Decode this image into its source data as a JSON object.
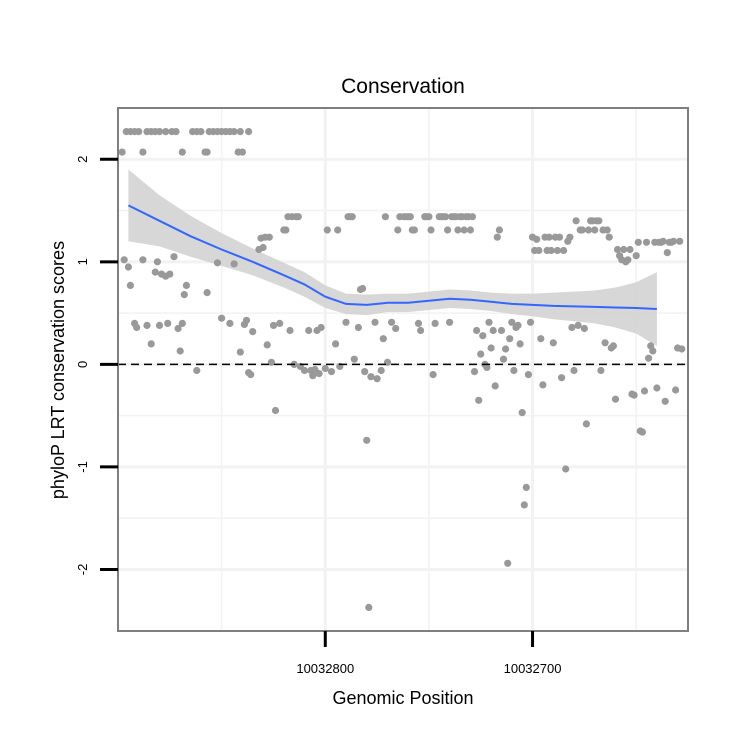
{
  "chart_data": {
    "type": "scatter",
    "title": "Conservation",
    "xlabel": "Genomic Position",
    "ylabel": "phyloP LRT conservation scores",
    "x_reversed": true,
    "xlim": [
      10032900,
      10032625
    ],
    "ylim": [
      -2.6,
      2.5
    ],
    "x_ticks": [
      10032800,
      10032700
    ],
    "x_tick_labels": [
      "10032800",
      "10032700"
    ],
    "y_ticks": [
      -2,
      -1,
      0,
      1,
      2
    ],
    "y_tick_labels": [
      "-2",
      "-1",
      "0",
      "1",
      "2"
    ],
    "grid": true,
    "reference_line": {
      "y": 0,
      "style": "dashed"
    },
    "colors": {
      "points": "#999999",
      "smooth": "#3366ff",
      "band": "#d3d3d3",
      "border": "#7f7f7f",
      "grid": "#f2f2f2"
    },
    "smooth": {
      "x": [
        10032895,
        10032880,
        10032865,
        10032850,
        10032835,
        10032820,
        10032810,
        10032800,
        10032790,
        10032780,
        10032770,
        10032760,
        10032750,
        10032740,
        10032730,
        10032720,
        10032710,
        10032700,
        10032690,
        10032680,
        10032670,
        10032660,
        10032650,
        10032640
      ],
      "y": [
        1.55,
        1.4,
        1.25,
        1.12,
        1.0,
        0.87,
        0.78,
        0.66,
        0.59,
        0.58,
        0.6,
        0.6,
        0.62,
        0.64,
        0.63,
        0.61,
        0.59,
        0.58,
        0.57,
        0.565,
        0.56,
        0.555,
        0.55,
        0.54
      ],
      "upper": [
        1.9,
        1.65,
        1.45,
        1.28,
        1.13,
        0.99,
        0.9,
        0.77,
        0.69,
        0.68,
        0.69,
        0.69,
        0.71,
        0.73,
        0.72,
        0.7,
        0.69,
        0.69,
        0.7,
        0.71,
        0.72,
        0.75,
        0.8,
        0.9
      ],
      "lower": [
        1.2,
        1.15,
        1.05,
        0.96,
        0.87,
        0.75,
        0.66,
        0.55,
        0.49,
        0.48,
        0.51,
        0.51,
        0.53,
        0.55,
        0.54,
        0.52,
        0.49,
        0.47,
        0.44,
        0.42,
        0.4,
        0.36,
        0.3,
        0.18
      ]
    },
    "points": [
      [
        10032898,
        2.07
      ],
      [
        10032896,
        2.27
      ],
      [
        10032894,
        2.27
      ],
      [
        10032892,
        2.27
      ],
      [
        10032890,
        2.27
      ],
      [
        10032888,
        2.07
      ],
      [
        10032886,
        2.27
      ],
      [
        10032884,
        2.27
      ],
      [
        10032882,
        2.27
      ],
      [
        10032880,
        2.27
      ],
      [
        10032877,
        2.27
      ],
      [
        10032874,
        2.27
      ],
      [
        10032872,
        2.27
      ],
      [
        10032869,
        2.07
      ],
      [
        10032864,
        2.27
      ],
      [
        10032862,
        2.27
      ],
      [
        10032860,
        2.27
      ],
      [
        10032858,
        2.07
      ],
      [
        10032857,
        2.07
      ],
      [
        10032856,
        2.27
      ],
      [
        10032854,
        2.27
      ],
      [
        10032852,
        2.27
      ],
      [
        10032850,
        2.27
      ],
      [
        10032848,
        2.27
      ],
      [
        10032846,
        2.27
      ],
      [
        10032844,
        2.27
      ],
      [
        10032842,
        2.07
      ],
      [
        10032841,
        2.27
      ],
      [
        10032840,
        2.07
      ],
      [
        10032837,
        2.27
      ],
      [
        10032897,
        1.02
      ],
      [
        10032895,
        0.95
      ],
      [
        10032894,
        0.77
      ],
      [
        10032892,
        0.4
      ],
      [
        10032891,
        0.36
      ],
      [
        10032888,
        1.02
      ],
      [
        10032886,
        0.38
      ],
      [
        10032884,
        0.2
      ],
      [
        10032882,
        0.9
      ],
      [
        10032881,
        1.0
      ],
      [
        10032880,
        0.38
      ],
      [
        10032879,
        0.88
      ],
      [
        10032877,
        0.86
      ],
      [
        10032876,
        0.4
      ],
      [
        10032875,
        0.88
      ],
      [
        10032873,
        1.05
      ],
      [
        10032871,
        0.35
      ],
      [
        10032870,
        0.13
      ],
      [
        10032869,
        0.4
      ],
      [
        10032868,
        0.68
      ],
      [
        10032867,
        0.77
      ],
      [
        10032862,
        -0.06
      ],
      [
        10032857,
        0.7
      ],
      [
        10032852,
        0.99
      ],
      [
        10032850,
        0.45
      ],
      [
        10032846,
        0.4
      ],
      [
        10032844,
        0.98
      ],
      [
        10032841,
        0.12
      ],
      [
        10032839,
        0.39
      ],
      [
        10032838,
        0.43
      ],
      [
        10032837,
        -0.08
      ],
      [
        10032836,
        -0.1
      ],
      [
        10032835,
        0.32
      ],
      [
        10032832,
        1.12
      ],
      [
        10032831,
        1.23
      ],
      [
        10032830,
        1.14
      ],
      [
        10032829,
        1.24
      ],
      [
        10032828,
        0.19
      ],
      [
        10032827,
        1.24
      ],
      [
        10032826,
        0.02
      ],
      [
        10032825,
        0.38
      ],
      [
        10032824,
        -0.45
      ],
      [
        10032822,
        0.4
      ],
      [
        10032820,
        1.31
      ],
      [
        10032819,
        1.31
      ],
      [
        10032818,
        1.44
      ],
      [
        10032817,
        0.33
      ],
      [
        10032816,
        1.44
      ],
      [
        10032815,
        0.0
      ],
      [
        10032814,
        1.44
      ],
      [
        10032813,
        1.44
      ],
      [
        10032812,
        -0.02
      ],
      [
        10032810,
        -0.06
      ],
      [
        10032808,
        0.33
      ],
      [
        10032807,
        -0.06
      ],
      [
        10032806,
        -0.11
      ],
      [
        10032805,
        -0.05
      ],
      [
        10032804,
        0.33
      ],
      [
        10032803,
        -0.09
      ],
      [
        10032802,
        0.36
      ],
      [
        10032800,
        -0.04
      ],
      [
        10032799,
        1.31
      ],
      [
        10032797,
        -0.07
      ],
      [
        10032795,
        0.2
      ],
      [
        10032794,
        1.31
      ],
      [
        10032793,
        -0.02
      ],
      [
        10032790,
        0.41
      ],
      [
        10032789,
        1.44
      ],
      [
        10032788,
        1.44
      ],
      [
        10032787,
        1.44
      ],
      [
        10032786,
        0.05
      ],
      [
        10032784,
        0.36
      ],
      [
        10032783,
        0.73
      ],
      [
        10032782,
        0.74
      ],
      [
        10032781,
        -0.07
      ],
      [
        10032780,
        -0.74
      ],
      [
        10032779,
        -2.37
      ],
      [
        10032778,
        -0.12
      ],
      [
        10032776,
        0.41
      ],
      [
        10032775,
        -0.14
      ],
      [
        10032773,
        -0.06
      ],
      [
        10032772,
        0.25
      ],
      [
        10032771,
        1.44
      ],
      [
        10032770,
        0.02
      ],
      [
        10032768,
        0.41
      ],
      [
        10032766,
        0.35
      ],
      [
        10032765,
        1.31
      ],
      [
        10032764,
        1.44
      ],
      [
        10032762,
        1.44
      ],
      [
        10032761,
        1.44
      ],
      [
        10032760,
        1.44
      ],
      [
        10032759,
        1.44
      ],
      [
        10032758,
        1.31
      ],
      [
        10032757,
        1.31
      ],
      [
        10032755,
        0.4
      ],
      [
        10032754,
        0.33
      ],
      [
        10032752,
        1.44
      ],
      [
        10032751,
        1.44
      ],
      [
        10032750,
        1.44
      ],
      [
        10032749,
        1.31
      ],
      [
        10032748,
        -0.1
      ],
      [
        10032747,
        0.4
      ],
      [
        10032745,
        1.44
      ],
      [
        10032744,
        1.44
      ],
      [
        10032743,
        1.44
      ],
      [
        10032742,
        1.44
      ],
      [
        10032741,
        1.31
      ],
      [
        10032740,
        0.41
      ],
      [
        10032739,
        1.44
      ],
      [
        10032738,
        1.44
      ],
      [
        10032737,
        1.44
      ],
      [
        10032736,
        1.31
      ],
      [
        10032735,
        1.44
      ],
      [
        10032734,
        1.44
      ],
      [
        10032733,
        1.31
      ],
      [
        10032732,
        1.44
      ],
      [
        10032731,
        1.44
      ],
      [
        10032730,
        1.31
      ],
      [
        10032729,
        1.44
      ],
      [
        10032728,
        -0.07
      ],
      [
        10032727,
        0.33
      ],
      [
        10032726,
        -0.35
      ],
      [
        10032725,
        0.1
      ],
      [
        10032724,
        0.28
      ],
      [
        10032723,
        0.0
      ],
      [
        10032722,
        -0.03
      ],
      [
        10032721,
        0.41
      ],
      [
        10032720,
        0.16
      ],
      [
        10032719,
        0.33
      ],
      [
        10032718,
        -0.21
      ],
      [
        10032717,
        1.24
      ],
      [
        10032716,
        1.31
      ],
      [
        10032715,
        0.33
      ],
      [
        10032714,
        0.05
      ],
      [
        10032713,
        0.15
      ],
      [
        10032712,
        -1.94
      ],
      [
        10032711,
        0.25
      ],
      [
        10032710,
        0.41
      ],
      [
        10032709,
        -0.06
      ],
      [
        10032708,
        0.36
      ],
      [
        10032707,
        0.38
      ],
      [
        10032706,
        0.2
      ],
      [
        10032705,
        -0.47
      ],
      [
        10032704,
        -1.37
      ],
      [
        10032703,
        -1.2
      ],
      [
        10032702,
        -0.1
      ],
      [
        10032701,
        0.41
      ],
      [
        10032700,
        1.24
      ],
      [
        10032699,
        1.11
      ],
      [
        10032698,
        1.22
      ],
      [
        10032697,
        1.11
      ],
      [
        10032696,
        0.25
      ],
      [
        10032695,
        -0.2
      ],
      [
        10032694,
        1.24
      ],
      [
        10032693,
        1.11
      ],
      [
        10032692,
        1.24
      ],
      [
        10032691,
        1.11
      ],
      [
        10032690,
        0.21
      ],
      [
        10032689,
        1.24
      ],
      [
        10032688,
        1.11
      ],
      [
        10032687,
        1.24
      ],
      [
        10032686,
        -0.13
      ],
      [
        10032685,
        1.11
      ],
      [
        10032684,
        -1.02
      ],
      [
        10032683,
        1.2
      ],
      [
        10032682,
        1.24
      ],
      [
        10032681,
        0.36
      ],
      [
        10032680,
        -0.06
      ],
      [
        10032679,
        1.4
      ],
      [
        10032678,
        0.38
      ],
      [
        10032677,
        1.31
      ],
      [
        10032676,
        1.31
      ],
      [
        10032675,
        0.35
      ],
      [
        10032674,
        -0.58
      ],
      [
        10032673,
        1.31
      ],
      [
        10032672,
        1.4
      ],
      [
        10032671,
        1.4
      ],
      [
        10032670,
        1.31
      ],
      [
        10032669,
        1.4
      ],
      [
        10032668,
        1.4
      ],
      [
        10032667,
        -0.06
      ],
      [
        10032666,
        1.31
      ],
      [
        10032665,
        0.21
      ],
      [
        10032664,
        1.31
      ],
      [
        10032663,
        1.24
      ],
      [
        10032662,
        0.16
      ],
      [
        10032661,
        0.18
      ],
      [
        10032660,
        -0.34
      ],
      [
        10032659,
        1.12
      ],
      [
        10032658,
        1.06
      ],
      [
        10032657,
        1.02
      ],
      [
        10032656,
        1.12
      ],
      [
        10032655,
        1.0
      ],
      [
        10032654,
        1.02
      ],
      [
        10032653,
        1.12
      ],
      [
        10032652,
        -0.29
      ],
      [
        10032651,
        -0.3
      ],
      [
        10032650,
        1.06
      ],
      [
        10032649,
        1.19
      ],
      [
        10032648,
        -0.65
      ],
      [
        10032647,
        -0.66
      ],
      [
        10032646,
        -0.26
      ],
      [
        10032645,
        1.19
      ],
      [
        10032644,
        0.06
      ],
      [
        10032643,
        0.18
      ],
      [
        10032642,
        0.13
      ],
      [
        10032641,
        1.19
      ],
      [
        10032640,
        -0.23
      ],
      [
        10032639,
        1.19
      ],
      [
        10032638,
        1.19
      ],
      [
        10032637,
        1.2
      ],
      [
        10032636,
        -0.36
      ],
      [
        10032635,
        1.09
      ],
      [
        10032634,
        1.19
      ],
      [
        10032633,
        1.19
      ],
      [
        10032632,
        1.2
      ],
      [
        10032631,
        -0.25
      ],
      [
        10032630,
        0.16
      ],
      [
        10032629,
        1.2
      ],
      [
        10032628,
        0.15
      ]
    ]
  }
}
